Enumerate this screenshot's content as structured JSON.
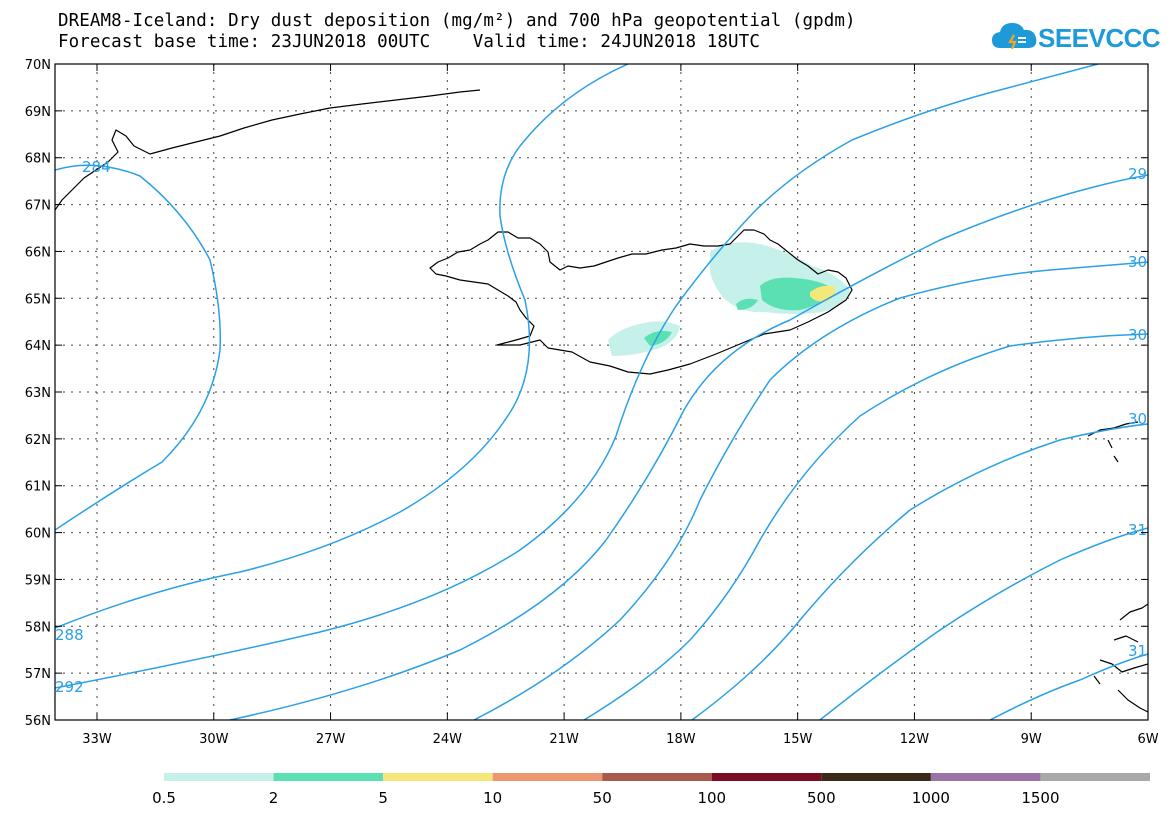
{
  "header": {
    "title_line1": "DREAM8-Iceland: Dry dust deposition (mg/m²) and 700 hPa geopotential (gpdm)",
    "title_line2": "Forecast base time: 23JUN2018 00UTC    Valid time: 24JUN2018 18UTC"
  },
  "logo": {
    "text": "SEEVCCC",
    "color": "#1e9ad8"
  },
  "map": {
    "lat_labels": [
      "70N",
      "69N",
      "68N",
      "67N",
      "66N",
      "65N",
      "64N",
      "63N",
      "62N",
      "61N",
      "60N",
      "59N",
      "58N",
      "57N",
      "56N"
    ],
    "lon_labels": [
      "33W",
      "30W",
      "27W",
      "24W",
      "21W",
      "18W",
      "15W",
      "12W",
      "9W",
      "6W"
    ],
    "contour_color": "#2aa0e6",
    "contour_labels": [
      "284",
      "288",
      "292",
      "29",
      "30",
      "30",
      "30",
      "31",
      "31"
    ]
  },
  "legend": {
    "colors": [
      "#c6f1ea",
      "#5be0b4",
      "#f4e87a",
      "#ec9772",
      "#a85a4c",
      "#7a0d24",
      "#3c2a18",
      "#9a74a6",
      "#a8a8a8"
    ],
    "labels": [
      "0.5",
      "2",
      "5",
      "10",
      "50",
      "100",
      "500",
      "1000",
      "1500"
    ]
  }
}
